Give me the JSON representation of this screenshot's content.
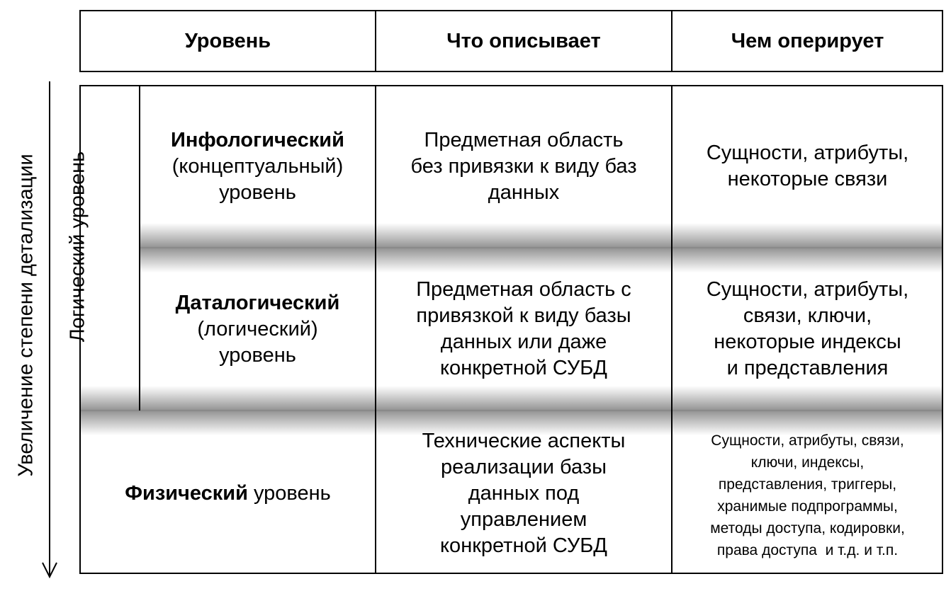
{
  "header": {
    "col1": "Уровень",
    "col2": "Что описывает",
    "col3": "Чем оперирует"
  },
  "axis_label": "Увеличение степени детализации",
  "group_label": "Логический уровень",
  "rows": [
    {
      "name_bold": "Инфологический",
      "name_rest_1": "(концептуальный)",
      "name_rest_2": "уровень",
      "describes": [
        "Предметная область",
        "без привязки к виду баз",
        "данных"
      ],
      "operates": [
        "Сущности, атрибуты,",
        "некоторые связи"
      ]
    },
    {
      "name_bold": "Даталогический",
      "name_rest_1": "(логический)",
      "name_rest_2": "уровень",
      "describes": [
        "Предметная область с",
        "привязкой к виду базы",
        "данных или даже",
        "конкретной СУБД"
      ],
      "operates": [
        "Сущности, атрибуты,",
        "связи, ключи,",
        "некоторые индексы",
        "и представления"
      ]
    },
    {
      "name_bold": "Физический",
      "name_rest_1": " уровень",
      "describes": [
        "Технические аспекты",
        "реализации базы",
        "данных под",
        "управлением",
        "конкретной СУБД"
      ],
      "operates": [
        "Сущности, атрибуты, связи,",
        "ключи, индексы,",
        "представления, триггеры,",
        "хранимые подпрограммы,",
        "методы доступа, кодировки,",
        "права доступа  и т.д. и т.п."
      ]
    }
  ]
}
